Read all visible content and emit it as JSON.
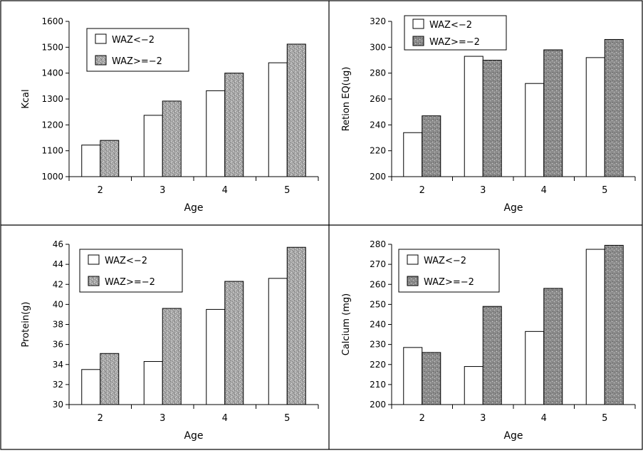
{
  "chart_data": [
    {
      "type": "bar",
      "title": "",
      "xlabel": "Age",
      "ylabel": "Kcal",
      "categories": [
        "2",
        "3",
        "4",
        "5"
      ],
      "ylim": [
        1000,
        1600
      ],
      "yticks": [
        "1000",
        "1100",
        "1200",
        "1300",
        "1400",
        "1500",
        "1600"
      ],
      "series": [
        {
          "name": "WAZ<−2",
          "values": [
            1122,
            1237,
            1332,
            1440
          ]
        },
        {
          "name": "WAZ>=−2",
          "values": [
            1140,
            1292,
            1400,
            1512
          ]
        }
      ],
      "legend": "top-left",
      "grid": false
    },
    {
      "type": "bar",
      "title": "",
      "xlabel": "Age",
      "ylabel": "Retion EQ(ug)",
      "categories": [
        "2",
        "3",
        "4",
        "5"
      ],
      "ylim": [
        200,
        320
      ],
      "yticks": [
        "200",
        "220",
        "240",
        "260",
        "280",
        "300",
        "320"
      ],
      "series": [
        {
          "name": "WAZ<−2",
          "values": [
            234,
            293,
            272,
            292
          ]
        },
        {
          "name": "WAZ>=−2",
          "values": [
            247,
            290,
            298,
            306
          ]
        }
      ],
      "legend": "top-left",
      "grid": false
    },
    {
      "type": "bar",
      "title": "",
      "xlabel": "Age",
      "ylabel": "Protein(g)",
      "categories": [
        "2",
        "3",
        "4",
        "5"
      ],
      "ylim": [
        30,
        46
      ],
      "yticks": [
        "30",
        "32",
        "34",
        "36",
        "38",
        "40",
        "42",
        "44",
        "46"
      ],
      "series": [
        {
          "name": "WAZ<−2",
          "values": [
            33.5,
            34.3,
            39.5,
            42.6
          ]
        },
        {
          "name": "WAZ>=−2",
          "values": [
            35.1,
            39.6,
            42.3,
            45.7
          ]
        }
      ],
      "legend": "top-left",
      "grid": false
    },
    {
      "type": "bar",
      "title": "",
      "xlabel": "Age",
      "ylabel": "Calcium (mg)",
      "categories": [
        "2",
        "3",
        "4",
        "5"
      ],
      "ylim": [
        200,
        280
      ],
      "yticks": [
        "200",
        "210",
        "220",
        "230",
        "240",
        "250",
        "260",
        "270",
        "280"
      ],
      "series": [
        {
          "name": "WAZ<−2",
          "values": [
            228.5,
            219,
            236.5,
            277.5
          ]
        },
        {
          "name": "WAZ>=−2",
          "values": [
            226,
            249,
            258,
            279.5
          ]
        }
      ],
      "legend": "top-left",
      "grid": false
    }
  ],
  "colors": {
    "series1_fill": "#ffffff",
    "series2_fill": "#a8a8a8",
    "panel_border": "#000000"
  }
}
